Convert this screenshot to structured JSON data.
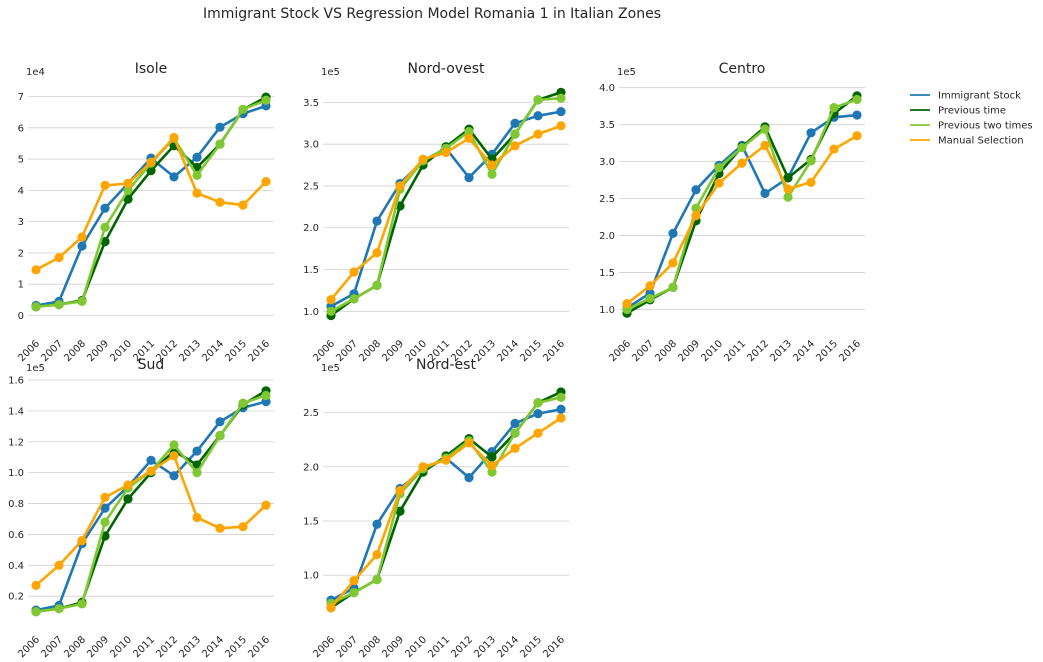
{
  "colors": {
    "Immigrant Stock": "#1f77b4",
    "Previous time": "#006400",
    "Previous two times": "#7fc832",
    "Manual Selection": "#ffa500",
    "grid": "#d0d0d0",
    "text": "#262626"
  },
  "chart_data": {
    "type": "line",
    "title": "Immigrant Stock VS Regression Model Romania 1 in Italian Zones",
    "legend": {
      "placement": "right",
      "entries": [
        "Immigrant Stock",
        "Previous time",
        "Previous two times",
        "Manual Selection"
      ]
    },
    "subplots": [
      {
        "title": "Isole",
        "x": [
          "2006",
          "2007",
          "2008",
          "2009",
          "2010",
          "2011",
          "2012",
          "2013",
          "2014",
          "2015",
          "2016"
        ],
        "multiplier": "1e4",
        "yticks": [
          0,
          1,
          2,
          3,
          4,
          5,
          6,
          7
        ],
        "ylim": [
          -0.4,
          7.4
        ],
        "series": [
          {
            "name": "Immigrant Stock",
            "values": [
              0.32,
              0.45,
              2.22,
              3.43,
              4.22,
              5.03,
              4.43,
              5.06,
              6.02,
              6.45,
              6.7
            ]
          },
          {
            "name": "Previous time",
            "values": [
              0.28,
              0.35,
              0.48,
              2.36,
              3.72,
              4.63,
              5.43,
              4.73,
              5.48,
              6.58,
              6.98
            ]
          },
          {
            "name": "Previous two times",
            "values": [
              0.28,
              0.35,
              0.45,
              2.82,
              4.0,
              4.87,
              5.66,
              4.48,
              5.48,
              6.59,
              6.88
            ]
          },
          {
            "name": "Manual Selection",
            "values": [
              1.46,
              1.85,
              2.51,
              4.16,
              4.22,
              4.9,
              5.69,
              3.91,
              3.62,
              3.53,
              4.28
            ]
          }
        ]
      },
      {
        "title": "Nord-ovest",
        "x": [
          "2006",
          "2007",
          "2008",
          "2009",
          "2010",
          "2011",
          "2012",
          "2013",
          "2014",
          "2015",
          "2016"
        ],
        "multiplier": "1e5",
        "yticks": [
          1.0,
          1.5,
          2.0,
          2.5,
          3.0,
          3.5
        ],
        "ylim": [
          0.8,
          3.72
        ],
        "series": [
          {
            "name": "Immigrant Stock",
            "values": [
              1.06,
              1.21,
              2.08,
              2.53,
              2.8,
              2.95,
              2.6,
              2.88,
              3.25,
              3.34,
              3.39
            ]
          },
          {
            "name": "Previous time",
            "values": [
              0.95,
              1.15,
              1.31,
              2.26,
              2.75,
              2.97,
              3.18,
              2.82,
              3.12,
              3.53,
              3.62
            ]
          },
          {
            "name": "Previous two times",
            "values": [
              1.0,
              1.15,
              1.31,
              2.46,
              2.8,
              2.95,
              3.15,
              2.64,
              3.12,
              3.53,
              3.55
            ]
          },
          {
            "name": "Manual Selection",
            "values": [
              1.14,
              1.47,
              1.7,
              2.5,
              2.82,
              2.9,
              3.07,
              2.75,
              2.98,
              3.12,
              3.22
            ]
          }
        ]
      },
      {
        "title": "Centro",
        "x": [
          "2006",
          "2007",
          "2008",
          "2009",
          "2010",
          "2011",
          "2012",
          "2013",
          "2014",
          "2015",
          "2016"
        ],
        "multiplier": "1e5",
        "yticks": [
          1.0,
          1.5,
          2.0,
          2.5,
          3.0,
          3.5,
          4.0
        ],
        "ylim": [
          0.75,
          4.05
        ],
        "series": [
          {
            "name": "Immigrant Stock",
            "values": [
              1.02,
              1.22,
              2.03,
              2.62,
              2.95,
              3.22,
              2.57,
              2.78,
              3.39,
              3.6,
              3.63
            ]
          },
          {
            "name": "Previous time",
            "values": [
              0.95,
              1.13,
              1.3,
              2.2,
              2.84,
              3.2,
              3.47,
              2.78,
              3.03,
              3.65,
              3.89
            ]
          },
          {
            "name": "Previous two times",
            "values": [
              1.0,
              1.15,
              1.3,
              2.37,
              2.92,
              3.19,
              3.44,
              2.52,
              3.01,
              3.73,
              3.84
            ]
          },
          {
            "name": "Manual Selection",
            "values": [
              1.08,
              1.32,
              1.63,
              2.27,
              2.71,
              2.98,
              3.22,
              2.63,
              2.72,
              3.17,
              3.35
            ]
          }
        ]
      },
      {
        "title": "Sud",
        "x": [
          "2006",
          "2007",
          "2008",
          "2009",
          "2010",
          "2011",
          "2012",
          "2013",
          "2014",
          "2015",
          "2016"
        ],
        "multiplier": "1e5",
        "yticks": [
          0.2,
          0.4,
          0.6,
          0.8,
          1.0,
          1.2,
          1.4,
          1.6
        ],
        "ylim": [
          0.02,
          1.6
        ],
        "series": [
          {
            "name": "Immigrant Stock",
            "values": [
              0.11,
              0.14,
              0.54,
              0.77,
              0.91,
              1.08,
              0.98,
              1.14,
              1.33,
              1.42,
              1.46
            ]
          },
          {
            "name": "Previous time",
            "values": [
              0.1,
              0.12,
              0.16,
              0.59,
              0.83,
              1.0,
              1.14,
              1.05,
              1.24,
              1.44,
              1.53
            ]
          },
          {
            "name": "Previous two times",
            "values": [
              0.1,
              0.12,
              0.15,
              0.68,
              0.9,
              1.01,
              1.18,
              1.0,
              1.24,
              1.45,
              1.5
            ]
          },
          {
            "name": "Manual Selection",
            "values": [
              0.27,
              0.4,
              0.56,
              0.84,
              0.92,
              1.01,
              1.11,
              0.71,
              0.64,
              0.65,
              0.79
            ]
          }
        ]
      },
      {
        "title": "Nord-est",
        "x": [
          "2006",
          "2007",
          "2008",
          "2009",
          "2010",
          "2011",
          "2012",
          "2013",
          "2014",
          "2015",
          "2016"
        ],
        "multiplier": "1e5",
        "yticks": [
          1.0,
          1.5,
          2.0,
          2.5
        ],
        "ylim": [
          0.55,
          2.8
        ],
        "series": [
          {
            "name": "Immigrant Stock",
            "values": [
              0.77,
              0.88,
              1.47,
              1.8,
              1.97,
              2.08,
              1.9,
              2.14,
              2.4,
              2.49,
              2.53
            ]
          },
          {
            "name": "Previous time",
            "values": [
              0.7,
              0.84,
              0.96,
              1.59,
              1.95,
              2.1,
              2.26,
              2.09,
              2.31,
              2.59,
              2.69
            ]
          },
          {
            "name": "Previous two times",
            "values": [
              0.74,
              0.84,
              0.96,
              1.75,
              1.98,
              2.08,
              2.24,
              1.95,
              2.31,
              2.59,
              2.64
            ]
          },
          {
            "name": "Manual Selection",
            "values": [
              0.7,
              0.95,
              1.19,
              1.78,
              2.0,
              2.06,
              2.22,
              2.01,
              2.17,
              2.31,
              2.45
            ]
          }
        ]
      }
    ]
  }
}
